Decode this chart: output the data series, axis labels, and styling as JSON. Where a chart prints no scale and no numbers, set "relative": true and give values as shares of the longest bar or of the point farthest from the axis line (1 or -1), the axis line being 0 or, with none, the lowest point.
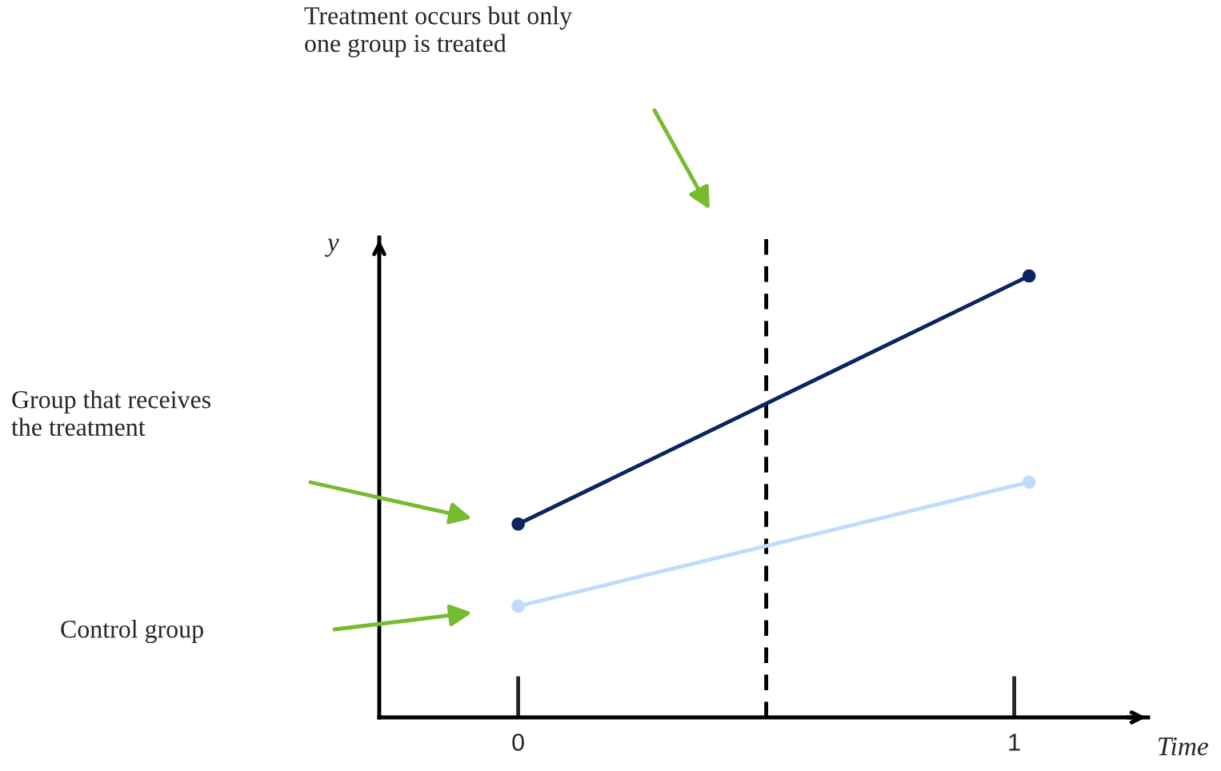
{
  "chart_data": {
    "type": "line",
    "relative": true,
    "xlabel": "Time",
    "ylabel": "y",
    "xlim": [
      -0.28,
      1.27
    ],
    "xticks": [
      0,
      1
    ],
    "x": [
      0,
      1.03
    ],
    "series": [
      {
        "values": [
          0.438,
          1
        ],
        "color": "#0b2560"
      },
      {
        "values": [
          0.252,
          0.533
        ],
        "color": "#bfdcfa"
      }
    ],
    "ref_lines": [
      {
        "axis": "x",
        "value": 0.5,
        "color": "#000000",
        "line_style": "dashed"
      }
    ],
    "annotations": [
      "Treatment occurs but only\none group is treated",
      "Group that receives\nthe treatment",
      "Control group"
    ],
    "marker": "circle",
    "line_style": "solid",
    "grid": false,
    "legend": false
  }
}
